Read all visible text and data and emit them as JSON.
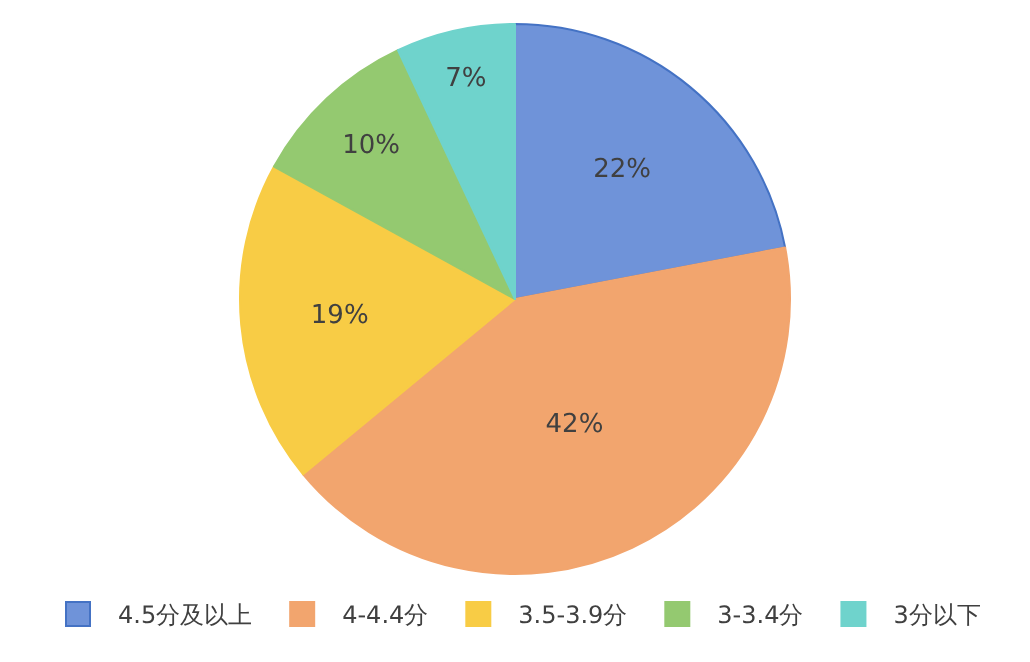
{
  "chart_data": {
    "type": "pie",
    "categories": [
      "4.5分及以上",
      "4-4.4分",
      "3.5-3.9分",
      "3-3.4分",
      "3分以下"
    ],
    "values": [
      22,
      42,
      19,
      10,
      7
    ],
    "colors": [
      "#6f93d9",
      "#f2a56e",
      "#f8cc45",
      "#94c970",
      "#6fd3cc"
    ],
    "value_labels": [
      "22%",
      "42%",
      "19%",
      "10%",
      "7%"
    ],
    "legend": "bottom"
  }
}
